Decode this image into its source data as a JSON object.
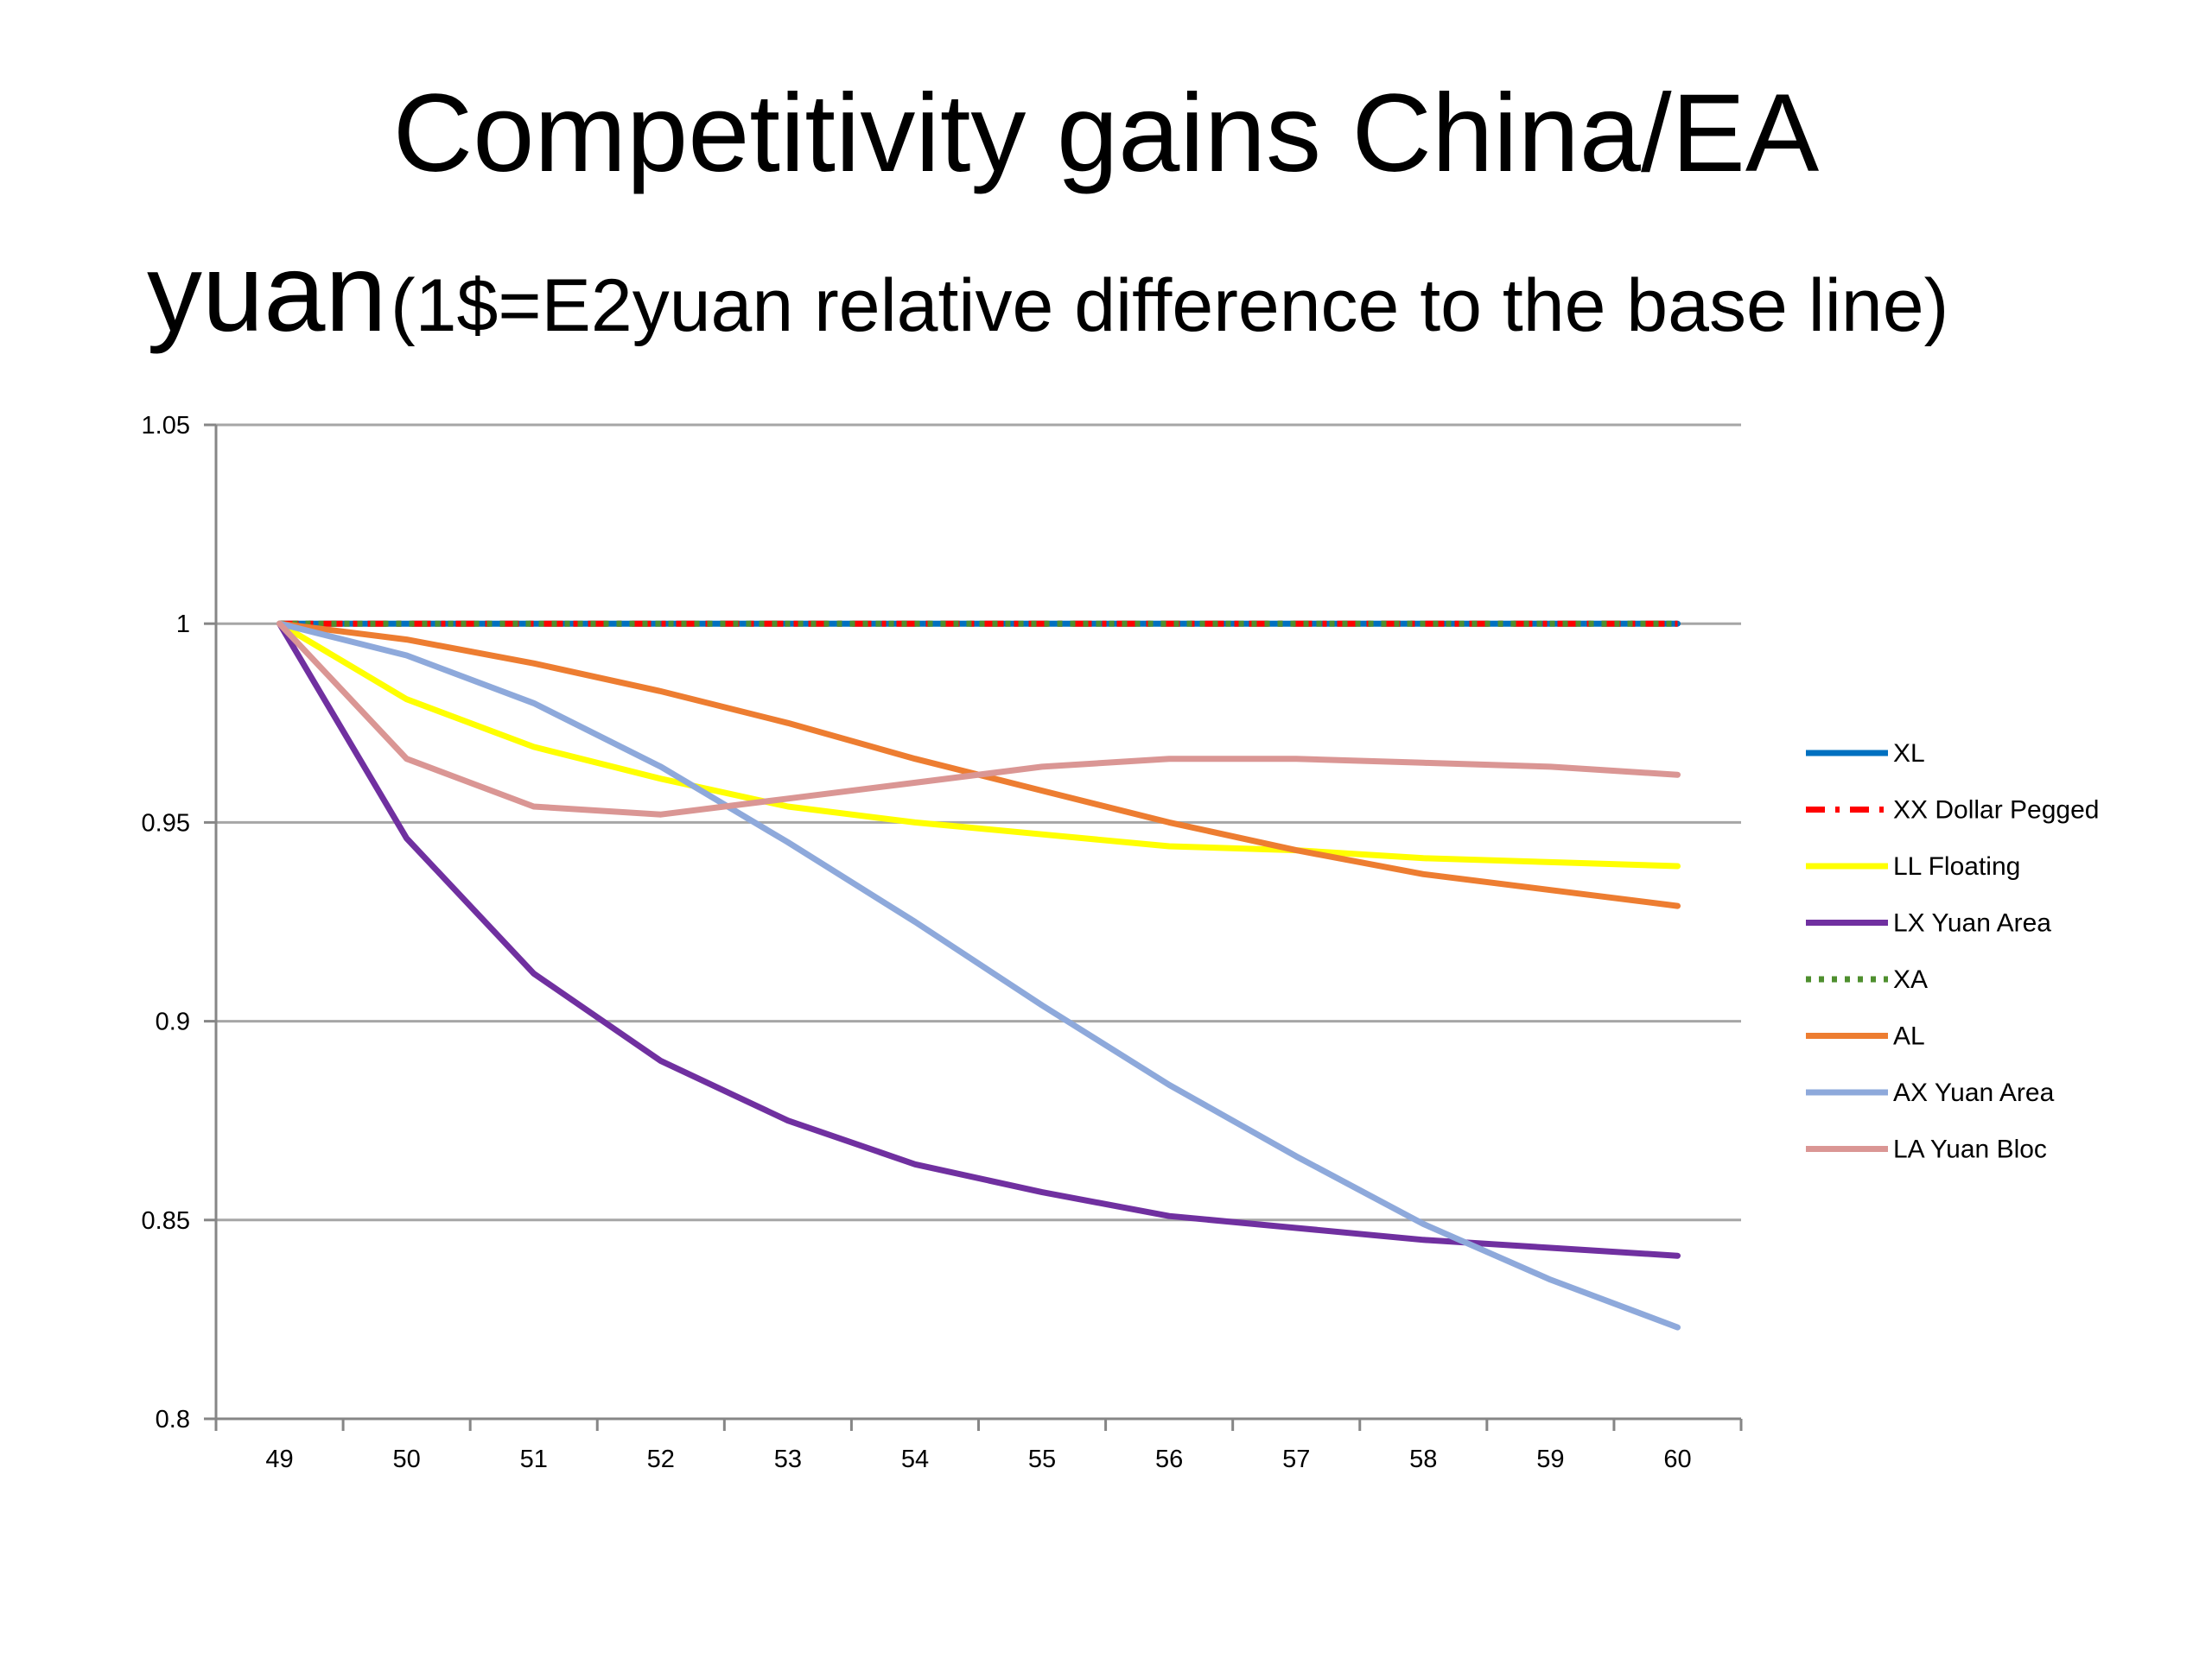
{
  "title": {
    "line1": "Competitivity gains China/EA",
    "line2_main": "yuan",
    "line2_sub": "(1$=E2yuan relative difference to the base line)"
  },
  "chart_data": {
    "type": "line",
    "title": "Competitivity gains China/EA yuan (1$=E2yuan relative difference to the base line)",
    "xlabel": "",
    "ylabel": "",
    "x": [
      "49",
      "50",
      "51",
      "52",
      "53",
      "54",
      "55",
      "56",
      "57",
      "58",
      "59",
      "60"
    ],
    "ylim": [
      0.8,
      1.05
    ],
    "yticks": [
      0.8,
      0.85,
      0.9,
      0.95,
      1,
      1.05
    ],
    "ytick_labels": [
      "0.8",
      "0.85",
      "0.9",
      "0.95",
      "1",
      "1.05"
    ],
    "grid": true,
    "legend_position": "right",
    "series": [
      {
        "name": "XL",
        "color": "#0070C0",
        "dash": "solid",
        "values": [
          1,
          1,
          1,
          1,
          1,
          1,
          1,
          1,
          1,
          1,
          1,
          1
        ]
      },
      {
        "name": "XX Dollar Pegged",
        "color": "#FF0000",
        "dash": "dashdot",
        "values": [
          1,
          1,
          1,
          1,
          1,
          1,
          1,
          1,
          1,
          1,
          1,
          1
        ]
      },
      {
        "name": "LL Floating",
        "color": "#FFFF00",
        "dash": "solid",
        "values": [
          1,
          0.981,
          0.969,
          0.961,
          0.954,
          0.95,
          0.947,
          0.944,
          0.943,
          0.941,
          0.94,
          0.939
        ]
      },
      {
        "name": "LX Yuan Area",
        "color": "#7030A0",
        "dash": "solid",
        "values": [
          1,
          0.946,
          0.912,
          0.89,
          0.875,
          0.864,
          0.857,
          0.851,
          0.848,
          0.845,
          0.843,
          0.841
        ]
      },
      {
        "name": "XA",
        "color": "#4E8F2E",
        "dash": "dot",
        "values": [
          1,
          1,
          1,
          1,
          1,
          1,
          1,
          1,
          1,
          1,
          1,
          1
        ]
      },
      {
        "name": "AL",
        "color": "#ED7D31",
        "dash": "solid",
        "values": [
          1,
          0.996,
          0.99,
          0.983,
          0.975,
          0.966,
          0.958,
          0.95,
          0.943,
          0.937,
          0.933,
          0.929
        ]
      },
      {
        "name": "AX Yuan Area",
        "color": "#8EA9DB",
        "dash": "solid",
        "values": [
          1,
          0.992,
          0.98,
          0.964,
          0.945,
          0.925,
          0.904,
          0.884,
          0.866,
          0.849,
          0.835,
          0.823
        ]
      },
      {
        "name": "LA Yuan Bloc",
        "color": "#DA9694",
        "dash": "solid",
        "values": [
          1,
          0.966,
          0.954,
          0.952,
          0.956,
          0.96,
          0.964,
          0.966,
          0.966,
          0.965,
          0.964,
          0.962
        ]
      }
    ]
  }
}
